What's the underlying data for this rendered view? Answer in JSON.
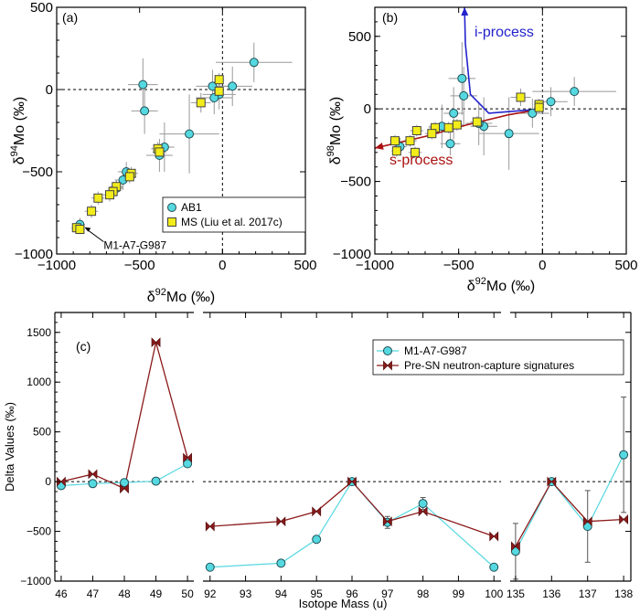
{
  "chart_data": [
    {
      "panel": "(a)",
      "type": "scatter",
      "xlabel": "δ92Mo (‰)",
      "ylabel": "δ94Mo (‰)",
      "xlim": [
        -1000,
        500
      ],
      "ylim": [
        -1000,
        500
      ],
      "xticks": [
        -1000,
        -500,
        0,
        500
      ],
      "yticks": [
        -1000,
        -500,
        0,
        500
      ],
      "xtick_labels": [
        "−1000",
        "−500",
        "0",
        "500"
      ],
      "ytick_labels": [
        "−1000",
        "−500",
        "0",
        "500"
      ],
      "legend": [
        {
          "label": "AB1",
          "marker": "circle",
          "color": "#55d8e0"
        },
        {
          "label": "MS (Liu et al. 2017c)",
          "marker": "square",
          "color": "#f2ec1a"
        }
      ],
      "annotation": "M1-A7-G987",
      "series": [
        {
          "name": "AB1",
          "points": [
            {
              "x": 190,
              "y": 165,
              "ex": 230,
              "ey": 120
            },
            {
              "x": -480,
              "y": 30,
              "ex": 90,
              "ey": 160
            },
            {
              "x": -470,
              "y": -130,
              "ex": 80,
              "ey": 140
            },
            {
              "x": -60,
              "y": 20,
              "ex": 100,
              "ey": 100
            },
            {
              "x": -20,
              "y": -30,
              "ex": 100,
              "ey": 90
            },
            {
              "x": -50,
              "y": -50,
              "ex": 110,
              "ey": 100
            },
            {
              "x": 60,
              "y": 20,
              "ex": 120,
              "ey": 120
            },
            {
              "x": -200,
              "y": -270,
              "ex": 180,
              "ey": 240
            },
            {
              "x": -350,
              "y": -350,
              "ex": 60,
              "ey": 150
            },
            {
              "x": -380,
              "y": -400,
              "ex": 80,
              "ey": 100
            },
            {
              "x": -580,
              "y": -500,
              "ex": 50,
              "ey": 60
            },
            {
              "x": -600,
              "y": -550,
              "ex": 50,
              "ey": 60
            },
            {
              "x": -640,
              "y": -600,
              "ex": 40,
              "ey": 50
            },
            {
              "x": -860,
              "y": -820,
              "ex": 30,
              "ey": 40
            }
          ]
        },
        {
          "name": "MS (Liu et al. 2017c)",
          "points": [
            {
              "x": -20,
              "y": 60,
              "ex": 30,
              "ey": 40
            },
            {
              "x": -20,
              "y": -10,
              "ex": 30,
              "ey": 40
            },
            {
              "x": -130,
              "y": -80,
              "ex": 60,
              "ey": 60
            },
            {
              "x": -390,
              "y": -360,
              "ex": 40,
              "ey": 40
            },
            {
              "x": -380,
              "y": -380,
              "ex": 40,
              "ey": 40
            },
            {
              "x": -550,
              "y": -510,
              "ex": 40,
              "ey": 40
            },
            {
              "x": -560,
              "y": -530,
              "ex": 40,
              "ey": 40
            },
            {
              "x": -640,
              "y": -590,
              "ex": 40,
              "ey": 40
            },
            {
              "x": -660,
              "y": -620,
              "ex": 40,
              "ey": 40
            },
            {
              "x": -680,
              "y": -640,
              "ex": 40,
              "ey": 40
            },
            {
              "x": -750,
              "y": -660,
              "ex": 40,
              "ey": 40
            },
            {
              "x": -790,
              "y": -740,
              "ex": 40,
              "ey": 40
            },
            {
              "x": -880,
              "y": -840,
              "ex": 30,
              "ey": 30
            },
            {
              "x": -860,
              "y": -850,
              "ex": 30,
              "ey": 30
            }
          ]
        }
      ]
    },
    {
      "panel": "(b)",
      "type": "scatter",
      "xlabel": "δ92Mo (‰)",
      "ylabel": "δ98Mo (‰)",
      "xlim": [
        -1000,
        500
      ],
      "ylim": [
        -1000,
        700
      ],
      "xticks": [
        -1000,
        -500,
        0,
        500
      ],
      "yticks": [
        -1000,
        -500,
        0,
        500
      ],
      "xtick_labels": [
        "−1000",
        "−500",
        "0",
        "500"
      ],
      "ytick_labels": [
        "−1000",
        "−500",
        "0",
        "500"
      ],
      "process_labels": [
        {
          "text": "i-process",
          "color": "#2222cc"
        },
        {
          "text": "s-process",
          "color": "#aa1111"
        }
      ],
      "process_curves": [
        {
          "name": "i-process",
          "color": "#2222cc",
          "x": [
            0,
            -320,
            -430,
            -460,
            -465
          ],
          "y": [
            0,
            -30,
            100,
            450,
            700
          ]
        },
        {
          "name": "s-process",
          "color": "#aa1111",
          "x": [
            0,
            -200,
            -450,
            -700,
            -1000
          ],
          "y": [
            0,
            -40,
            -110,
            -190,
            -270
          ]
        }
      ],
      "series": [
        {
          "name": "AB1",
          "points": [
            {
              "x": 190,
              "y": 120,
              "ex": 250,
              "ey": 100
            },
            {
              "x": -480,
              "y": 210,
              "ex": 80,
              "ey": 250
            },
            {
              "x": -470,
              "y": 90,
              "ex": 80,
              "ey": 200
            },
            {
              "x": 50,
              "y": 50,
              "ex": 100,
              "ey": 100
            },
            {
              "x": -60,
              "y": -30,
              "ex": 100,
              "ey": 100
            },
            {
              "x": -200,
              "y": -170,
              "ex": 180,
              "ey": 250
            },
            {
              "x": -350,
              "y": -120,
              "ex": 80,
              "ey": 200
            },
            {
              "x": -380,
              "y": -100,
              "ex": 80,
              "ey": 150
            },
            {
              "x": -530,
              "y": -30,
              "ex": 60,
              "ey": 180
            },
            {
              "x": -600,
              "y": -120,
              "ex": 80,
              "ey": 150
            },
            {
              "x": -550,
              "y": -240,
              "ex": 60,
              "ey": 80
            },
            {
              "x": -850,
              "y": -260,
              "ex": 40,
              "ey": 60
            }
          ]
        },
        {
          "name": "MS (Liu et al. 2017c)",
          "points": [
            {
              "x": -130,
              "y": 80,
              "ex": 60,
              "ey": 60
            },
            {
              "x": -20,
              "y": 30,
              "ex": 30,
              "ey": 40
            },
            {
              "x": -20,
              "y": 10,
              "ex": 30,
              "ey": 40
            },
            {
              "x": -390,
              "y": -90,
              "ex": 40,
              "ey": 40
            },
            {
              "x": -510,
              "y": -110,
              "ex": 40,
              "ey": 40
            },
            {
              "x": -560,
              "y": -130,
              "ex": 40,
              "ey": 40
            },
            {
              "x": -640,
              "y": -130,
              "ex": 40,
              "ey": 40
            },
            {
              "x": -660,
              "y": -170,
              "ex": 40,
              "ey": 40
            },
            {
              "x": -750,
              "y": -150,
              "ex": 40,
              "ey": 40
            },
            {
              "x": -790,
              "y": -220,
              "ex": 40,
              "ey": 40
            },
            {
              "x": -760,
              "y": -300,
              "ex": 40,
              "ey": 40
            },
            {
              "x": -880,
              "y": -220,
              "ex": 30,
              "ey": 40
            },
            {
              "x": -870,
              "y": -290,
              "ex": 30,
              "ey": 40
            }
          ]
        }
      ]
    },
    {
      "panel": "(c)",
      "type": "line",
      "xlabel": "Isotope Mass (u)",
      "ylabel": "Delta Values (‰)",
      "ylim": [
        -1000,
        1700
      ],
      "yticks": [
        -1000,
        -500,
        0,
        500,
        1000,
        1500
      ],
      "ytick_labels": [
        "−1000",
        "−500",
        "0",
        "500",
        "1000",
        "1500"
      ],
      "legend": [
        {
          "label": "M1-A7-G987",
          "marker": "circle",
          "color": "#55d8e0"
        },
        {
          "label": "Pre-SN neutron-capture signatures",
          "marker": "bowtie",
          "color": "#8b1a1a"
        }
      ],
      "segments": [
        {
          "xticks": [
            46,
            47,
            48,
            49,
            50
          ],
          "xtick_labels": [
            "46",
            "47",
            "48",
            "49",
            "50"
          ],
          "xlim": [
            45.8,
            50.2
          ],
          "measured": [
            {
              "x": 46,
              "y": -40,
              "e": 20
            },
            {
              "x": 47,
              "y": -20,
              "e": 20
            },
            {
              "x": 48,
              "y": -10,
              "e": 20
            },
            {
              "x": 49,
              "y": 5,
              "e": 20
            },
            {
              "x": 50,
              "y": 180,
              "e": 30
            }
          ],
          "model": [
            {
              "x": 46,
              "y": 0
            },
            {
              "x": 47,
              "y": 75
            },
            {
              "x": 48,
              "y": -70
            },
            {
              "x": 49,
              "y": 1400
            },
            {
              "x": 50,
              "y": 240
            }
          ]
        },
        {
          "xticks": [
            92,
            93,
            94,
            95,
            96,
            97,
            98,
            99,
            100
          ],
          "xtick_labels": [
            "92",
            "93",
            "94",
            "95",
            "96",
            "97",
            "98",
            "99",
            "100"
          ],
          "xlim": [
            91.8,
            100.2
          ],
          "measured": [
            {
              "x": 92,
              "y": -860,
              "e": 30
            },
            {
              "x": 94,
              "y": -820,
              "e": 30
            },
            {
              "x": 95,
              "y": -580,
              "e": 30
            },
            {
              "x": 96,
              "y": 0,
              "e": 20
            },
            {
              "x": 97,
              "y": -410,
              "e": 60
            },
            {
              "x": 98,
              "y": -220,
              "e": 60
            },
            {
              "x": 100,
              "y": -860,
              "e": 30
            }
          ],
          "model": [
            {
              "x": 92,
              "y": -450
            },
            {
              "x": 94,
              "y": -400
            },
            {
              "x": 95,
              "y": -300
            },
            {
              "x": 96,
              "y": 0
            },
            {
              "x": 97,
              "y": -400
            },
            {
              "x": 98,
              "y": -300
            },
            {
              "x": 100,
              "y": -550
            }
          ]
        },
        {
          "xticks": [
            135,
            136,
            137,
            138
          ],
          "xtick_labels": [
            "135",
            "136",
            "137",
            "138"
          ],
          "xlim": [
            134.85,
            138.2
          ],
          "measured": [
            {
              "x": 135,
              "y": -700,
              "e": 280
            },
            {
              "x": 136,
              "y": 0,
              "e": 20
            },
            {
              "x": 137,
              "y": -450,
              "e": 360
            },
            {
              "x": 138,
              "y": 270,
              "e": 580
            }
          ],
          "model": [
            {
              "x": 135,
              "y": -650
            },
            {
              "x": 136,
              "y": 0
            },
            {
              "x": 137,
              "y": -400
            },
            {
              "x": 138,
              "y": -380
            }
          ]
        }
      ]
    }
  ]
}
